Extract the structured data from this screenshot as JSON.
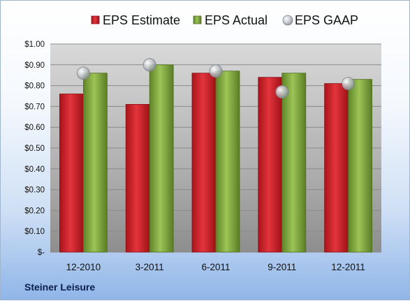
{
  "company_name": "Steiner Leisure",
  "chart_data": {
    "type": "bar",
    "categories": [
      "12-2010",
      "3-2011",
      "6-2011",
      "9-2011",
      "12-2011"
    ],
    "series": [
      {
        "name": "EPS Estimate",
        "values": [
          0.76,
          0.71,
          0.86,
          0.84,
          0.81
        ],
        "color": "#c8202a"
      },
      {
        "name": "EPS Actual",
        "values": [
          0.86,
          0.9,
          0.87,
          0.86,
          0.83
        ],
        "color": "#7aa23a"
      },
      {
        "name": "EPS GAAP",
        "type": "scatter",
        "values": [
          0.86,
          0.9,
          0.87,
          0.77,
          0.81
        ],
        "color": "#a9aeb4"
      }
    ],
    "ylim": [
      0,
      1.0
    ],
    "yticks": [
      0,
      0.1,
      0.2,
      0.3,
      0.4,
      0.5,
      0.6,
      0.7,
      0.8,
      0.9,
      1.0
    ],
    "ytick_labels": [
      "$-",
      "$0.10",
      "$0.20",
      "$0.30",
      "$0.40",
      "$0.50",
      "$0.60",
      "$0.70",
      "$0.80",
      "$0.90",
      "$1.00"
    ],
    "grid": true,
    "legend_position": "top"
  }
}
